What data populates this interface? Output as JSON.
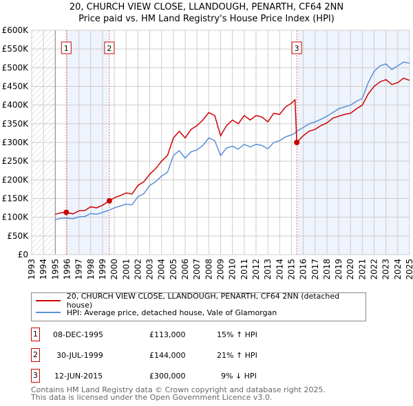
{
  "chart_data": {
    "type": "line",
    "title": "20, CHURCH VIEW CLOSE, LLANDOUGH, PENARTH, CF64 2NN",
    "subtitle": "Price paid vs. HM Land Registry's House Price Index (HPI)",
    "xlim": [
      1993,
      2025
    ],
    "ylim": [
      0,
      600000
    ],
    "yticks": [
      "£0",
      "£50K",
      "£100K",
      "£150K",
      "£200K",
      "£250K",
      "£300K",
      "£350K",
      "£400K",
      "£450K",
      "£500K",
      "£550K",
      "£600K"
    ],
    "xticks": [
      "1993",
      "1994",
      "1995",
      "1996",
      "1997",
      "1998",
      "1999",
      "2000",
      "2001",
      "2002",
      "2003",
      "2004",
      "2005",
      "2006",
      "2007",
      "2008",
      "2009",
      "2010",
      "2011",
      "2012",
      "2013",
      "2014",
      "2015",
      "2016",
      "2017",
      "2018",
      "2019",
      "2020",
      "2021",
      "2022",
      "2023",
      "2024",
      "2025"
    ],
    "grid": true,
    "series": [
      {
        "name": "20, CHURCH VIEW CLOSE, LLANDOUGH, PENARTH, CF64 2NN (detached house)",
        "color": "#cc0000",
        "x": [
          1995,
          1995.5,
          1995.93,
          1996.5,
          1997,
          1997.5,
          1998,
          1998.5,
          1999,
          1999.58,
          2000,
          2000.5,
          2001,
          2001.5,
          2002,
          2002.5,
          2003,
          2003.5,
          2004,
          2004.5,
          2005,
          2005.5,
          2006,
          2006.5,
          2007,
          2007.5,
          2008,
          2008.5,
          2009,
          2009.5,
          2010,
          2010.5,
          2011,
          2011.5,
          2012,
          2012.5,
          2013,
          2013.5,
          2014,
          2014.5,
          2015,
          2015.3,
          2015.45,
          2016,
          2016.5,
          2017,
          2017.5,
          2018,
          2018.5,
          2019,
          2019.5,
          2020,
          2020.5,
          2021,
          2021.5,
          2022,
          2022.5,
          2023,
          2023.5,
          2024,
          2024.5,
          2025
        ],
        "y": [
          108000,
          112000,
          113000,
          109000,
          117000,
          118000,
          128000,
          125000,
          132000,
          144000,
          152000,
          158000,
          165000,
          162000,
          185000,
          195000,
          215000,
          230000,
          250000,
          265000,
          312000,
          330000,
          312000,
          335000,
          345000,
          360000,
          380000,
          372000,
          318000,
          345000,
          360000,
          350000,
          372000,
          360000,
          372000,
          368000,
          355000,
          378000,
          375000,
          395000,
          405000,
          414000,
          300000,
          318000,
          330000,
          335000,
          345000,
          352000,
          365000,
          370000,
          375000,
          378000,
          390000,
          400000,
          430000,
          450000,
          462000,
          468000,
          455000,
          460000,
          472000,
          466000
        ]
      },
      {
        "name": "HPI: Average price, detached house, Vale of Glamorgan",
        "color": "#5b8fd6",
        "x": [
          1995,
          1995.5,
          1995.93,
          1996.5,
          1997,
          1997.5,
          1998,
          1998.5,
          1999,
          1999.58,
          2000,
          2000.5,
          2001,
          2001.5,
          2002,
          2002.5,
          2003,
          2003.5,
          2004,
          2004.5,
          2005,
          2005.5,
          2006,
          2006.5,
          2007,
          2007.5,
          2008,
          2008.5,
          2009,
          2009.5,
          2010,
          2010.5,
          2011,
          2011.5,
          2012,
          2012.5,
          2013,
          2013.5,
          2014,
          2014.5,
          2015,
          2015.3,
          2015.45,
          2016,
          2016.5,
          2017,
          2017.5,
          2018,
          2018.5,
          2019,
          2019.5,
          2020,
          2020.5,
          2021,
          2021.5,
          2022,
          2022.5,
          2023,
          2023.5,
          2024,
          2024.5,
          2025
        ],
        "y": [
          94000,
          97000,
          98000,
          96000,
          101000,
          102000,
          110000,
          108000,
          113000,
          119000,
          125000,
          130000,
          135000,
          133000,
          155000,
          163000,
          185000,
          195000,
          210000,
          220000,
          265000,
          278000,
          258000,
          275000,
          280000,
          292000,
          312000,
          305000,
          265000,
          285000,
          290000,
          282000,
          295000,
          288000,
          295000,
          292000,
          283000,
          300000,
          305000,
          315000,
          320000,
          325000,
          330000,
          340000,
          350000,
          355000,
          362000,
          370000,
          380000,
          390000,
          395000,
          400000,
          410000,
          418000,
          460000,
          490000,
          505000,
          510000,
          495000,
          505000,
          515000,
          512000
        ]
      }
    ],
    "sales": [
      {
        "n": "1",
        "date": "08-DEC-1995",
        "x": 1995.93,
        "price": "£113,000",
        "value": 113000,
        "hpi": "15% ↑ HPI"
      },
      {
        "n": "2",
        "date": "30-JUL-1999",
        "x": 1999.58,
        "price": "£144,000",
        "value": 144000,
        "hpi": "21% ↑ HPI"
      },
      {
        "n": "3",
        "date": "12-JUN-2015",
        "x": 2015.45,
        "price": "£300,000",
        "value": 300000,
        "hpi": "9% ↓ HPI"
      }
    ]
  },
  "footer": {
    "line1": "Contains HM Land Registry data © Crown copyright and database right 2025.",
    "line2": "This data is licensed under the Open Government Licence v3.0."
  }
}
